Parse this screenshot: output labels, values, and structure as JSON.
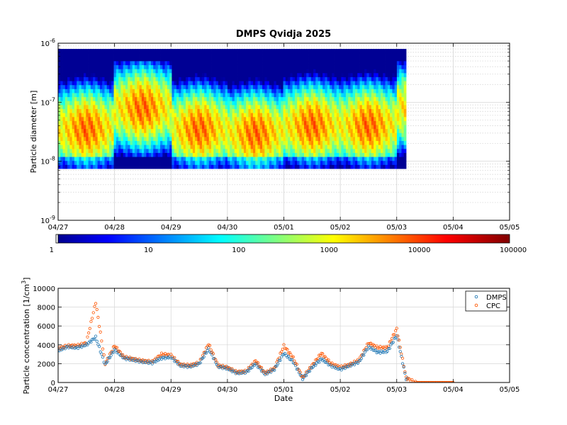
{
  "chart_data": [
    {
      "type": "heatmap",
      "title": "DMPS Qvidja 2025",
      "xlabel": "",
      "ylabel": "Particle diameter [m]",
      "x_ticks": [
        "04/27",
        "04/28",
        "04/29",
        "04/30",
        "05/01",
        "05/02",
        "05/03",
        "05/04",
        "05/05"
      ],
      "xlim": [
        "2025-04-27",
        "2025-05-05"
      ],
      "y_scale": "log",
      "ylim": [
        1e-09,
        1e-06
      ],
      "y_ticks": [
        {
          "value": 1e-09,
          "base": "10",
          "exp": "-9"
        },
        {
          "value": 1e-08,
          "base": "10",
          "exp": "-8"
        },
        {
          "value": 1e-07,
          "base": "10",
          "exp": "-7"
        },
        {
          "value": 1e-06,
          "base": "10",
          "exp": "-6"
        }
      ],
      "data_range_x": [
        "2025-04-27",
        "2025-05-03 04:00"
      ],
      "data_range_diameter": [
        7.5e-09,
        8e-07
      ],
      "mode_diameter_by_day": [
        {
          "date": "04/27",
          "diameter": 3.5e-08
        },
        {
          "date": "04/28",
          "diameter": 8e-08
        },
        {
          "date": "04/29",
          "diameter": 3.5e-08
        },
        {
          "date": "04/30",
          "diameter": 3e-08
        },
        {
          "date": "05/01",
          "diameter": 4e-08
        },
        {
          "date": "05/02",
          "diameter": 4e-08
        },
        {
          "date": "05/03",
          "diameter": 8e-08
        }
      ],
      "grid": true,
      "colorbar": {
        "scale": "log",
        "range": [
          1,
          100000
        ],
        "ticks": [
          "1",
          "10",
          "100",
          "1000",
          "10000",
          "100000"
        ],
        "colormap": "jet"
      }
    },
    {
      "type": "scatter",
      "title": "",
      "xlabel": "Date",
      "ylabel": "Particle concentration [1/cm",
      "ylabel_sup": "3",
      "ylabel_end": "]",
      "x_ticks": [
        "04/27",
        "04/28",
        "04/29",
        "04/30",
        "05/01",
        "05/02",
        "05/03",
        "05/04",
        "05/05"
      ],
      "xlim": [
        "2025-04-27",
        "2025-05-05"
      ],
      "ylim": [
        0,
        10000
      ],
      "y_ticks": [
        "0",
        "2000",
        "4000",
        "6000",
        "8000",
        "10000"
      ],
      "grid": true,
      "legend_position": "top-right",
      "series": [
        {
          "name": "DMPS",
          "color": "#1f77b4",
          "marker": "circle"
        },
        {
          "name": "CPC",
          "color": "#ff5500",
          "marker": "circle"
        }
      ],
      "x": [
        "04/27 00:00",
        "04/27 04:00",
        "04/27 08:00",
        "04/27 12:00",
        "04/27 16:00",
        "04/27 20:00",
        "04/28 00:00",
        "04/28 04:00",
        "04/28 08:00",
        "04/28 12:00",
        "04/28 16:00",
        "04/28 20:00",
        "04/29 00:00",
        "04/29 04:00",
        "04/29 08:00",
        "04/29 12:00",
        "04/29 16:00",
        "04/29 20:00",
        "04/30 00:00",
        "04/30 04:00",
        "04/30 08:00",
        "04/30 12:00",
        "04/30 16:00",
        "04/30 20:00",
        "05/01 00:00",
        "05/01 04:00",
        "05/01 08:00",
        "05/01 12:00",
        "05/01 16:00",
        "05/01 20:00",
        "05/02 00:00",
        "05/02 04:00",
        "05/02 08:00",
        "05/02 12:00",
        "05/02 16:00",
        "05/02 20:00",
        "05/03 00:00",
        "05/03 04:00",
        "05/03 08:00",
        "05/03 12:00",
        "05/03 16:00",
        "05/03 20:00",
        "05/04 00:00"
      ],
      "values_dmps": [
        3400,
        3800,
        3700,
        4000,
        4800,
        1900,
        3500,
        2600,
        2400,
        2200,
        2100,
        2600,
        2700,
        1800,
        1700,
        2000,
        3600,
        1700,
        1500,
        1000,
        1100,
        2000,
        900,
        1400,
        3100,
        2200,
        400,
        1600,
        2500,
        1800,
        1400,
        1800,
        2200,
        3800,
        3200,
        3300,
        5000,
        400,
        0,
        0,
        0,
        0,
        0
      ],
      "values_cpc": [
        3600,
        3900,
        3900,
        4200,
        8500,
        2000,
        3900,
        2700,
        2500,
        2300,
        2200,
        3000,
        2900,
        1900,
        1800,
        2100,
        4100,
        1800,
        1600,
        1100,
        1200,
        2300,
        1000,
        1500,
        3900,
        2600,
        500,
        1800,
        3100,
        2000,
        1600,
        1900,
        2400,
        4200,
        3700,
        3700,
        5700,
        500,
        0,
        0,
        0,
        0,
        0
      ]
    }
  ]
}
